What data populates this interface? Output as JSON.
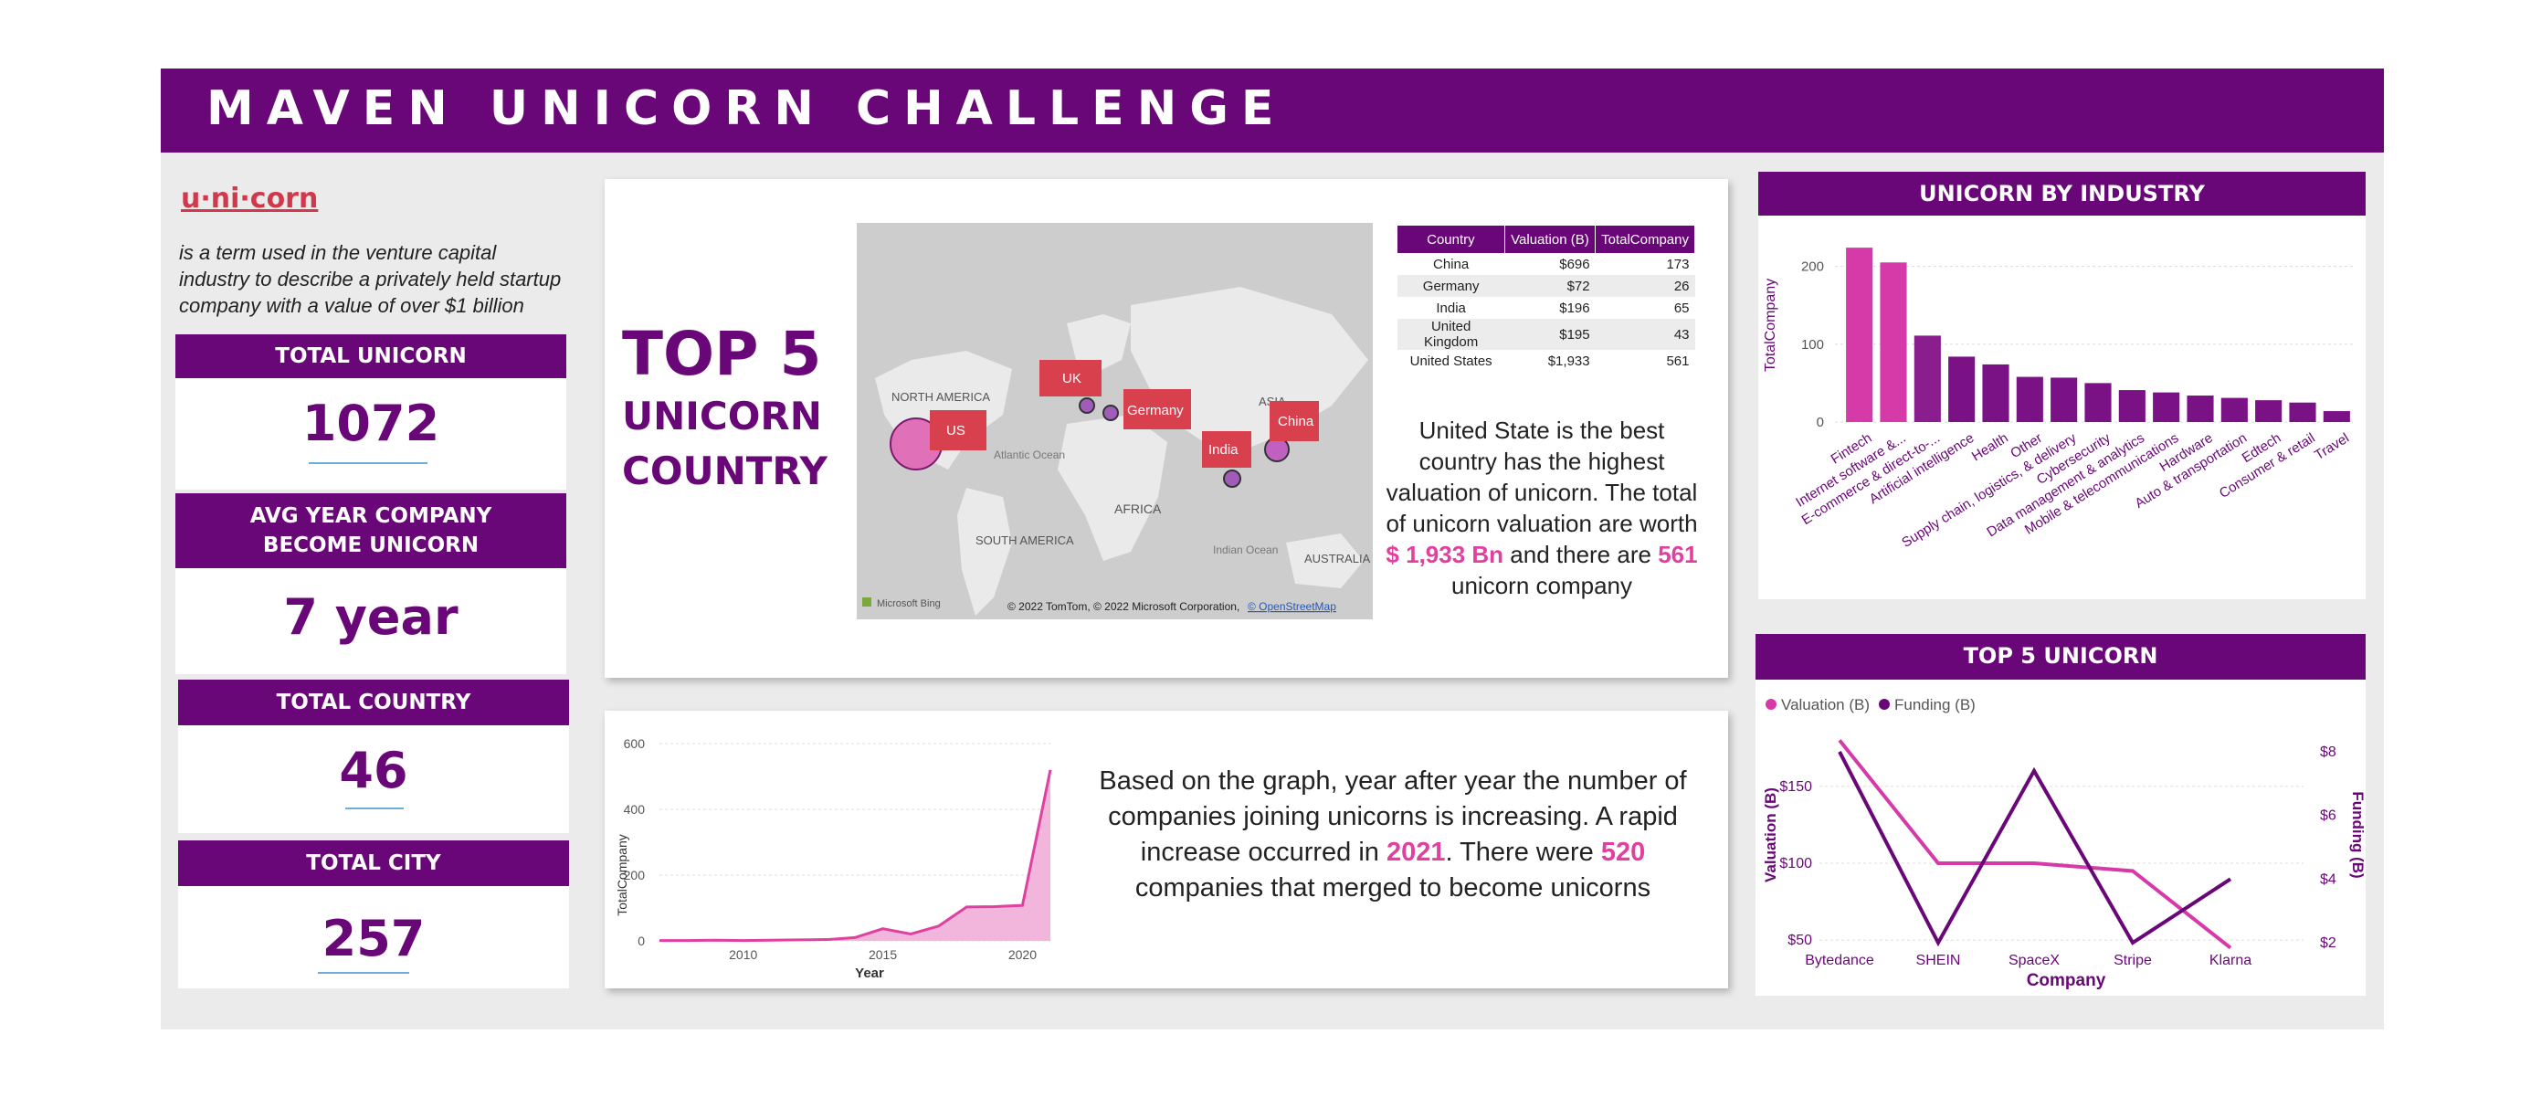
{
  "header": {
    "title": "MAVEN UNICORN  CHALLENGE"
  },
  "definition": {
    "word": "u·ni·corn",
    "text": "is a term used in the venture capital industry to describe a privately held startup company with a value of over $1 billion"
  },
  "kpis": [
    {
      "label": "TOTAL UNICORN",
      "value": "1072"
    },
    {
      "label_line1": "AVG YEAR COMPANY",
      "label_line2": "BECOME UNICORN",
      "value": "7 year"
    },
    {
      "label": "TOTAL COUNTRY",
      "value": "46"
    },
    {
      "label": "TOTAL CITY",
      "value": "257"
    }
  ],
  "top5_title": {
    "line1": "TOP 5",
    "line2": "UNICORN",
    "line3": "COUNTRY"
  },
  "map": {
    "continents": [
      "NORTH AMERICA",
      "SOUTH AMERICA",
      "AFRICA",
      "ASIA",
      "AUSTRALIA"
    ],
    "oceans": [
      "Atlantic Ocean",
      "Indian Ocean"
    ],
    "labels": [
      "US",
      "UK",
      "Germany",
      "India",
      "China"
    ],
    "bing": "Microsoft Bing",
    "copyright": "© 2022 TomTom, © 2022 Microsoft Corporation,",
    "osm": "© OpenStreetMap"
  },
  "country_table": {
    "headers": [
      "Country",
      "Valuation (B)",
      "TotalCompany"
    ],
    "rows": [
      [
        "China",
        "$696",
        "173"
      ],
      [
        "Germany",
        "$72",
        "26"
      ],
      [
        "India",
        "$196",
        "65"
      ],
      [
        "United Kingdom",
        "$195",
        "43"
      ],
      [
        "United States",
        "$1,933",
        "561"
      ]
    ]
  },
  "country_text": {
    "p1": "United State is the best country has the highest valuation of unicorn. The total of unicorn valuation are worth",
    "hl1": "$ 1,933 Bn",
    "p2": "and there are",
    "hl2": "561",
    "p3": "unicorn company"
  },
  "year_text": {
    "p1": "Based on the graph, year after year the number of companies joining unicorns is increasing. A rapid increase occurred in",
    "hl1": "2021",
    "p2": ". There were",
    "hl2": "520",
    "p3": "companies that merged to become unicorns"
  },
  "industry_title": "UNICORN BY INDUSTRY",
  "top5_unicorn_title": "TOP 5 UNICORN",
  "colors": {
    "purple": "#6a0778",
    "pink": "#d63aa8",
    "lightpink": "#f0b0da"
  },
  "chart_data": [
    {
      "type": "area",
      "xlabel": "Year",
      "ylabel": "TotalCompany",
      "ylim": [
        0,
        600
      ],
      "yticks": [
        0,
        200,
        400,
        600
      ],
      "xticks": [
        2010,
        2015,
        2020
      ],
      "x": [
        2007,
        2008,
        2009,
        2010,
        2011,
        2012,
        2013,
        2014,
        2015,
        2016,
        2017,
        2018,
        2019,
        2020,
        2021
      ],
      "values": [
        1,
        1,
        2,
        1,
        2,
        3,
        4,
        10,
        37,
        21,
        45,
        103,
        104,
        108,
        520
      ]
    },
    {
      "type": "bar",
      "title": "UNICORN BY INDUSTRY",
      "ylabel": "TotalCompany",
      "ylim": [
        0,
        230
      ],
      "yticks": [
        0,
        100,
        200
      ],
      "categories": [
        "Fintech",
        "Internet software &...",
        "E-commerce & direct-to-...",
        "Artificial intelligence",
        "Health",
        "Other",
        "Supply chain, logistics, & delivery",
        "Cybersecurity",
        "Data management & analytics",
        "Mobile & telecommunications",
        "Hardware",
        "Auto & transportation",
        "Edtech",
        "Consumer & retail",
        "Travel"
      ],
      "values": [
        224,
        205,
        111,
        84,
        74,
        58,
        57,
        50,
        41,
        38,
        34,
        31,
        28,
        25,
        14
      ]
    },
    {
      "type": "line",
      "title": "TOP 5 UNICORN",
      "xlabel": "Company",
      "categories": [
        "Bytedance",
        "SHEIN",
        "SpaceX",
        "Stripe",
        "Klarna"
      ],
      "series": [
        {
          "name": "Valuation (B)",
          "axis": "left",
          "values": [
            180,
            100,
            100,
            95,
            45
          ]
        },
        {
          "name": "Funding (B)",
          "axis": "right",
          "values": [
            8,
            2,
            7.4,
            2,
            4
          ]
        }
      ],
      "y_left": {
        "label": "Valuation (B)",
        "ticks": [
          "$50",
          "$100",
          "$150"
        ],
        "lim": [
          40,
          185
        ]
      },
      "y_right": {
        "label": "Funding (B)",
        "ticks": [
          "$2",
          "$4",
          "$6",
          "$8"
        ],
        "lim": [
          1.6,
          8.6
        ]
      }
    }
  ]
}
